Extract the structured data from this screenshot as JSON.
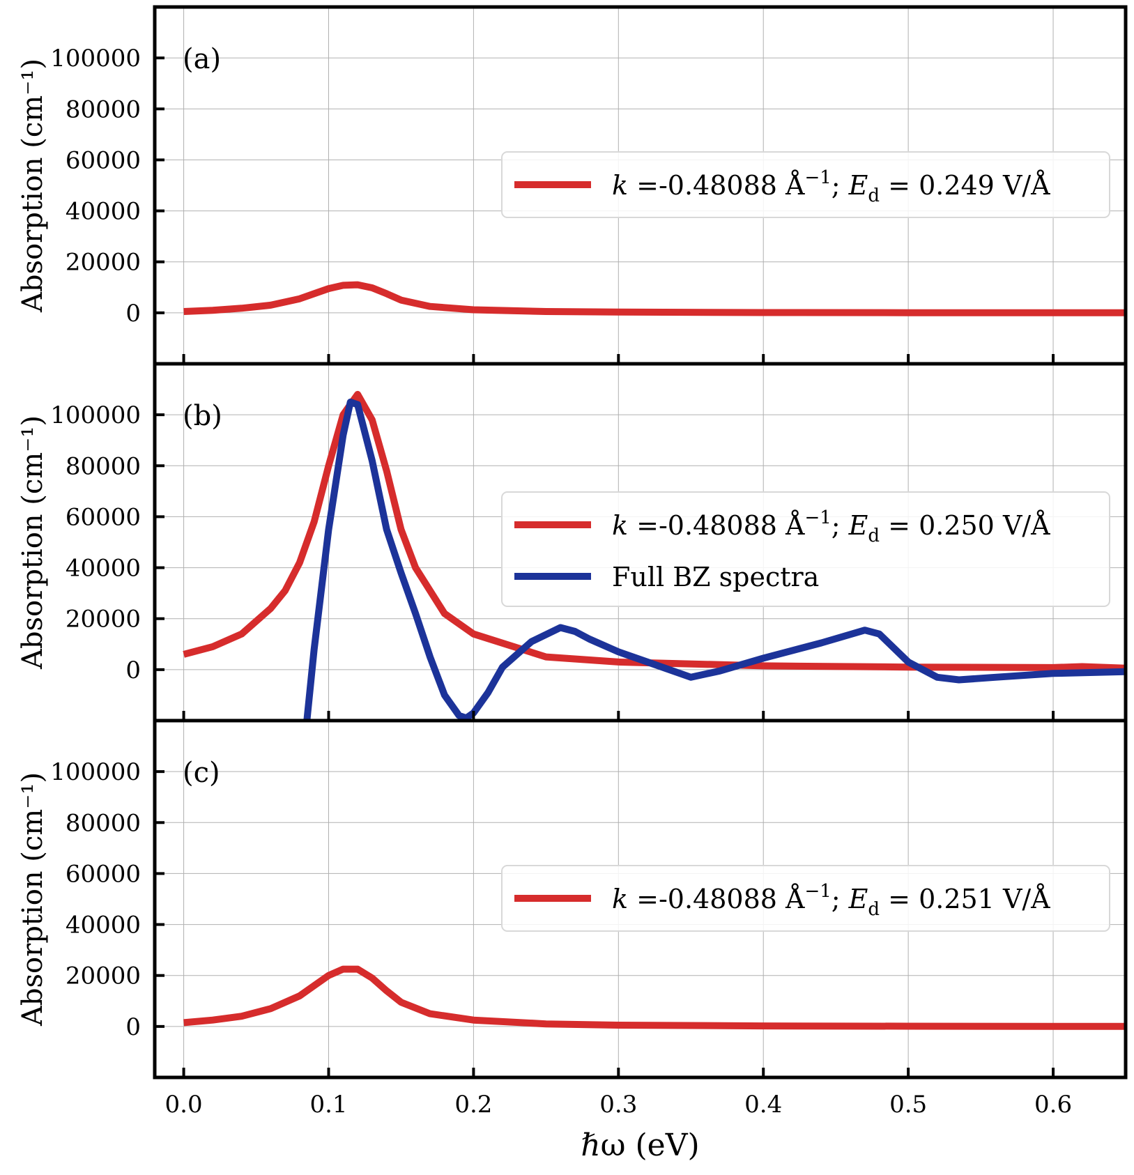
{
  "chart_data": {
    "type": "line",
    "xlabel": "ℏω (eV)",
    "xlim": [
      -0.02,
      0.65
    ],
    "x_ticks": [
      0.0,
      0.1,
      0.2,
      0.3,
      0.4,
      0.5,
      0.6
    ],
    "x_tick_labels": [
      "0.0",
      "0.1",
      "0.2",
      "0.3",
      "0.4",
      "0.5",
      "0.6"
    ],
    "grid": true,
    "panels": [
      {
        "label": "(a)",
        "ylabel": "Absorption (cm⁻¹)",
        "ylim": [
          -20000,
          120000
        ],
        "y_ticks": [
          0,
          20000,
          40000,
          60000,
          80000,
          100000
        ],
        "y_tick_labels": [
          "0",
          "20000",
          "40000",
          "60000",
          "80000",
          "100000"
        ],
        "legend_position": "center-right",
        "series": [
          {
            "name": "k =-0.48088 Å⁻¹; Ed = 0.249 V/Å",
            "legend_label": {
              "k": "k",
              "k_value": " =-0.48088 Å",
              "k_exp": "−1",
              "sep": "; ",
              "E": "E",
              "E_sub": "d",
              "E_value": " = 0.249 V/Å"
            },
            "color": "#d62c2c",
            "x": [
              0.0,
              0.02,
              0.04,
              0.06,
              0.08,
              0.09,
              0.1,
              0.11,
              0.12,
              0.13,
              0.14,
              0.15,
              0.17,
              0.2,
              0.25,
              0.3,
              0.4,
              0.5,
              0.6,
              0.65
            ],
            "y": [
              500,
              1000,
              1800,
              3000,
              5500,
              7500,
              9500,
              10800,
              11000,
              9800,
              7500,
              5000,
              2500,
              1200,
              500,
              300,
              100,
              50,
              30,
              20
            ]
          }
        ]
      },
      {
        "label": "(b)",
        "ylabel": "Absorption (cm⁻¹)",
        "ylim": [
          -20000,
          120000
        ],
        "y_ticks": [
          0,
          20000,
          40000,
          60000,
          80000,
          100000
        ],
        "y_tick_labels": [
          "0",
          "20000",
          "40000",
          "60000",
          "80000",
          "100000"
        ],
        "legend_position": "center-right",
        "series": [
          {
            "name": "k =-0.48088 Å⁻¹; Ed = 0.250 V/Å",
            "legend_label": {
              "k": "k",
              "k_value": " =-0.48088 Å",
              "k_exp": "−1",
              "sep": "; ",
              "E": "E",
              "E_sub": "d",
              "E_value": " = 0.250 V/Å"
            },
            "color": "#d62c2c",
            "x": [
              0.0,
              0.02,
              0.04,
              0.06,
              0.07,
              0.08,
              0.09,
              0.1,
              0.11,
              0.12,
              0.13,
              0.14,
              0.15,
              0.16,
              0.18,
              0.2,
              0.25,
              0.3,
              0.4,
              0.5,
              0.6,
              0.62,
              0.65
            ],
            "y": [
              6000,
              9000,
              14000,
              24000,
              31000,
              42000,
              58000,
              80000,
              100000,
              108000,
              98000,
              78000,
              55000,
              40000,
              22000,
              14000,
              5000,
              3000,
              1500,
              1000,
              800,
              1200,
              600
            ]
          },
          {
            "name": "Full BZ spectra",
            "legend_label": {
              "text": "Full BZ spectra"
            },
            "color": "#1c3399",
            "x": [
              0.085,
              0.09,
              0.1,
              0.11,
              0.115,
              0.12,
              0.13,
              0.14,
              0.15,
              0.16,
              0.17,
              0.18,
              0.19,
              0.195,
              0.2,
              0.21,
              0.22,
              0.24,
              0.26,
              0.27,
              0.28,
              0.3,
              0.32,
              0.35,
              0.37,
              0.4,
              0.44,
              0.47,
              0.48,
              0.5,
              0.52,
              0.535,
              0.56,
              0.6,
              0.65
            ],
            "y": [
              -20000,
              8000,
              55000,
              92000,
              105000,
              104000,
              82000,
              55000,
              38000,
              22000,
              5000,
              -10000,
              -18000,
              -19000,
              -17000,
              -9000,
              1000,
              11000,
              16500,
              15000,
              12000,
              7000,
              3000,
              -3000,
              -500,
              4500,
              10500,
              15500,
              14000,
              3000,
              -3000,
              -4000,
              -3000,
              -1500,
              -800
            ]
          }
        ]
      },
      {
        "label": "(c)",
        "ylabel": "Absorption (cm⁻¹)",
        "ylim": [
          -20000,
          120000
        ],
        "y_ticks": [
          0,
          20000,
          40000,
          60000,
          80000,
          100000
        ],
        "y_tick_labels": [
          "0",
          "20000",
          "40000",
          "60000",
          "80000",
          "100000"
        ],
        "legend_position": "center-right",
        "series": [
          {
            "name": "k =-0.48088 Å⁻¹; Ed = 0.251 V/Å",
            "legend_label": {
              "k": "k",
              "k_value": " =-0.48088 Å",
              "k_exp": "−1",
              "sep": "; ",
              "E": "E",
              "E_sub": "d",
              "E_value": " = 0.251 V/Å"
            },
            "color": "#d62c2c",
            "x": [
              0.0,
              0.02,
              0.04,
              0.06,
              0.08,
              0.09,
              0.1,
              0.11,
              0.12,
              0.13,
              0.14,
              0.15,
              0.17,
              0.2,
              0.25,
              0.3,
              0.4,
              0.5,
              0.6,
              0.65
            ],
            "y": [
              1500,
              2500,
              4000,
              7000,
              12000,
              16000,
              20000,
              22500,
              22500,
              19000,
              14000,
              9500,
              5000,
              2500,
              1000,
              500,
              200,
              100,
              50,
              30
            ]
          }
        ]
      }
    ]
  }
}
